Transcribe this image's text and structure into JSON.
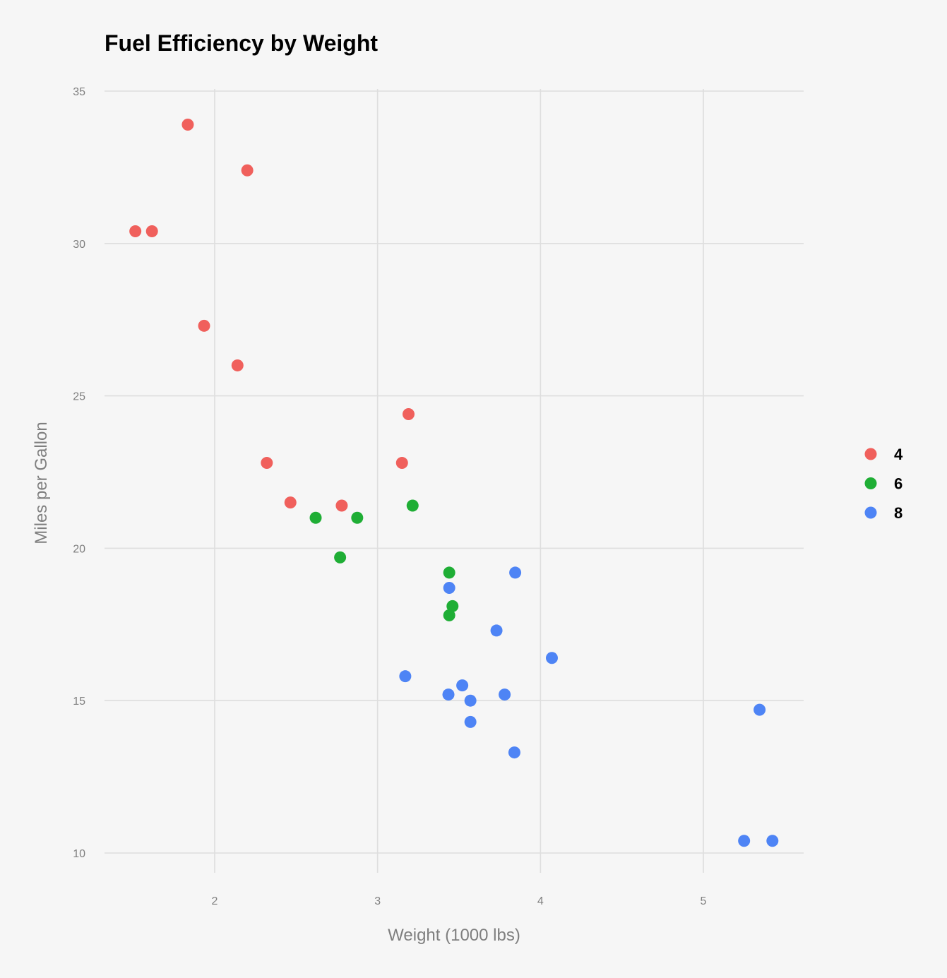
{
  "chart_data": {
    "type": "scatter",
    "title": "Fuel Efficiency by Weight",
    "xlabel": "Weight (1000 lbs)",
    "ylabel": "Miles per Gallon",
    "xlim": [
      1.32,
      5.62
    ],
    "ylim": [
      9.35,
      35.3
    ],
    "xticks": [
      2,
      3,
      4,
      5
    ],
    "yticks": [
      10,
      15,
      20,
      25,
      30,
      35
    ],
    "grid": true,
    "legend_position": "right",
    "series": [
      {
        "name": "4",
        "color": "#f0605c",
        "points": [
          [
            1.835,
            33.9
          ],
          [
            2.2,
            32.4
          ],
          [
            1.513,
            30.4
          ],
          [
            1.615,
            30.4
          ],
          [
            1.935,
            27.3
          ],
          [
            2.14,
            26.0
          ],
          [
            3.19,
            24.4
          ],
          [
            2.32,
            22.8
          ],
          [
            3.15,
            22.8
          ],
          [
            2.465,
            21.5
          ],
          [
            2.78,
            21.4
          ]
        ]
      },
      {
        "name": "6",
        "color": "#1fae35",
        "points": [
          [
            2.62,
            21.0
          ],
          [
            2.875,
            21.0
          ],
          [
            3.215,
            21.4
          ],
          [
            2.77,
            19.7
          ],
          [
            3.44,
            19.2
          ],
          [
            3.46,
            18.1
          ],
          [
            3.44,
            17.8
          ]
        ]
      },
      {
        "name": "8",
        "color": "#4e84f5",
        "points": [
          [
            3.44,
            18.7
          ],
          [
            3.845,
            19.2
          ],
          [
            3.73,
            17.3
          ],
          [
            4.07,
            16.4
          ],
          [
            3.17,
            15.8
          ],
          [
            3.52,
            15.5
          ],
          [
            3.435,
            15.2
          ],
          [
            3.78,
            15.2
          ],
          [
            3.57,
            15.0
          ],
          [
            3.57,
            14.3
          ],
          [
            3.84,
            13.3
          ],
          [
            5.345,
            14.7
          ],
          [
            5.25,
            10.4
          ],
          [
            5.424,
            10.4
          ]
        ]
      }
    ]
  }
}
